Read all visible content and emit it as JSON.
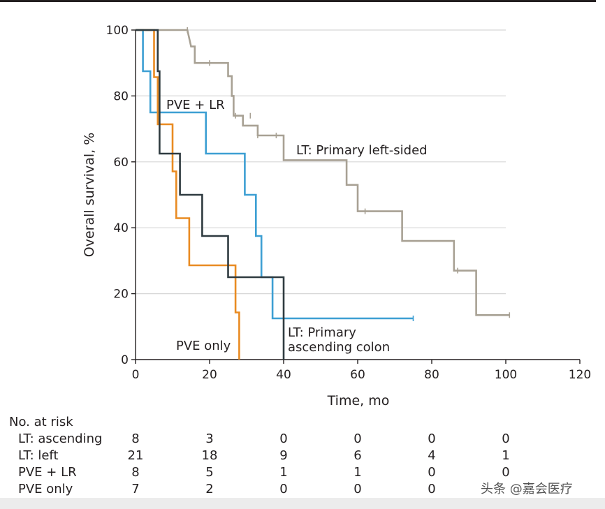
{
  "chart_data": {
    "type": "line",
    "title": "",
    "xlabel": "Time, mo",
    "ylabel": "Overall survival, %",
    "xlim": [
      0,
      120
    ],
    "ylim": [
      0,
      100
    ],
    "xticks": [
      0,
      20,
      40,
      60,
      80,
      100,
      120
    ],
    "yticks": [
      0,
      20,
      40,
      60,
      80,
      100
    ],
    "grid": true,
    "series": [
      {
        "name": "LT: Primary left-sided",
        "color": "#a8a194",
        "steps": [
          [
            0,
            100
          ],
          [
            14,
            100
          ],
          [
            15,
            95
          ],
          [
            16,
            95
          ],
          [
            16,
            90
          ],
          [
            25,
            90
          ],
          [
            25,
            86
          ],
          [
            26,
            86
          ],
          [
            26,
            80
          ],
          [
            26.5,
            80
          ],
          [
            26.5,
            74
          ],
          [
            29,
            74
          ],
          [
            29,
            71
          ],
          [
            33,
            71
          ],
          [
            33,
            68
          ],
          [
            40,
            68
          ],
          [
            40,
            60.5
          ],
          [
            57,
            60.5
          ],
          [
            57,
            53
          ],
          [
            60,
            53
          ],
          [
            60,
            45
          ],
          [
            72,
            45
          ],
          [
            72,
            36
          ],
          [
            86,
            36
          ],
          [
            86,
            27
          ],
          [
            92,
            27
          ],
          [
            92,
            13.5
          ],
          [
            101,
            13.5
          ]
        ],
        "censored": [
          [
            14,
            100
          ],
          [
            20,
            90
          ],
          [
            27,
            74
          ],
          [
            31,
            74
          ],
          [
            33,
            68
          ],
          [
            38,
            68
          ],
          [
            62,
            45
          ],
          [
            87,
            27
          ],
          [
            101,
            13.5
          ]
        ]
      },
      {
        "name": "PVE + LR",
        "color": "#3d9fd3",
        "steps": [
          [
            0,
            100
          ],
          [
            2,
            100
          ],
          [
            2,
            87.5
          ],
          [
            4,
            87.5
          ],
          [
            4,
            75
          ],
          [
            19,
            75
          ],
          [
            19,
            62.5
          ],
          [
            29.5,
            62.5
          ],
          [
            29.5,
            50
          ],
          [
            32.5,
            50
          ],
          [
            32.5,
            37.5
          ],
          [
            34,
            37.5
          ],
          [
            34,
            25
          ],
          [
            37,
            25
          ],
          [
            37,
            12.5
          ],
          [
            75,
            12.5
          ]
        ],
        "censored": [
          [
            75,
            12.5
          ]
        ]
      },
      {
        "name": "PVE only",
        "color": "#e98b22",
        "steps": [
          [
            0,
            100
          ],
          [
            5,
            100
          ],
          [
            5,
            85.7
          ],
          [
            6,
            85.7
          ],
          [
            6,
            71.4
          ],
          [
            10,
            71.4
          ],
          [
            10,
            57.1
          ],
          [
            11,
            57.1
          ],
          [
            11,
            42.9
          ],
          [
            14.5,
            42.9
          ],
          [
            14.5,
            28.6
          ],
          [
            27,
            28.6
          ],
          [
            27,
            14.3
          ],
          [
            28,
            14.3
          ],
          [
            28,
            0
          ]
        ],
        "censored": []
      },
      {
        "name": "LT: Primary ascending colon",
        "color": "#2f3b40",
        "steps": [
          [
            0,
            100
          ],
          [
            6,
            100
          ],
          [
            6,
            87.5
          ],
          [
            6.5,
            87.5
          ],
          [
            6.5,
            62.5
          ],
          [
            12,
            62.5
          ],
          [
            12,
            50
          ],
          [
            18,
            50
          ],
          [
            18,
            37.5
          ],
          [
            25,
            37.5
          ],
          [
            25,
            25
          ],
          [
            40,
            25
          ],
          [
            40,
            0
          ]
        ],
        "censored": []
      }
    ],
    "annotations": {
      "pve_lr": "PVE + LR",
      "lt_left": "LT: Primary left-sided",
      "pve_only": "PVE only",
      "lt_asc_line1": "LT: Primary",
      "lt_asc_line2": "ascending colon"
    }
  },
  "risk_table": {
    "title": "No. at risk",
    "rows": [
      {
        "label": "LT: ascending",
        "values": [
          "8",
          "3",
          "0",
          "0",
          "0",
          "0"
        ]
      },
      {
        "label": "LT: left",
        "values": [
          "21",
          "18",
          "9",
          "6",
          "4",
          "1"
        ]
      },
      {
        "label": "PVE + LR",
        "values": [
          "8",
          "5",
          "1",
          "1",
          "0",
          "0"
        ]
      },
      {
        "label": "PVE only",
        "values": [
          "7",
          "2",
          "0",
          "0",
          "0",
          ""
        ]
      }
    ]
  },
  "watermark": "头条 @嘉会医疗"
}
